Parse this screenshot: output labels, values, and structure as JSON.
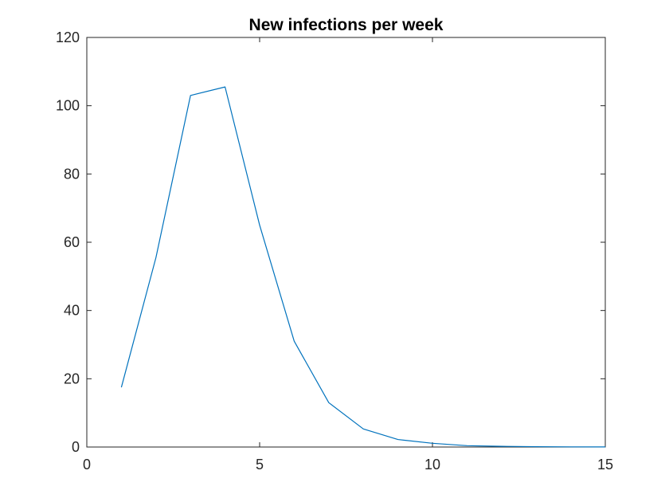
{
  "chart_data": {
    "type": "line",
    "title": "New infections per week",
    "xlabel": "",
    "ylabel": "",
    "xlim": [
      0,
      15
    ],
    "ylim": [
      0,
      120
    ],
    "xticks": [
      0,
      5,
      10,
      15
    ],
    "yticks": [
      0,
      20,
      40,
      60,
      80,
      100,
      120
    ],
    "grid": false,
    "legend": false,
    "series": [
      {
        "color": "#0072BD",
        "x": [
          1,
          2,
          3,
          4,
          5,
          6,
          7,
          8,
          9,
          10,
          11,
          12,
          13,
          14,
          15
        ],
        "y": [
          17.5,
          55.5,
          103,
          105.5,
          65,
          31,
          13,
          5.3,
          2.2,
          1.1,
          0.4,
          0.2,
          0.1,
          0.05,
          0.02
        ]
      }
    ]
  }
}
